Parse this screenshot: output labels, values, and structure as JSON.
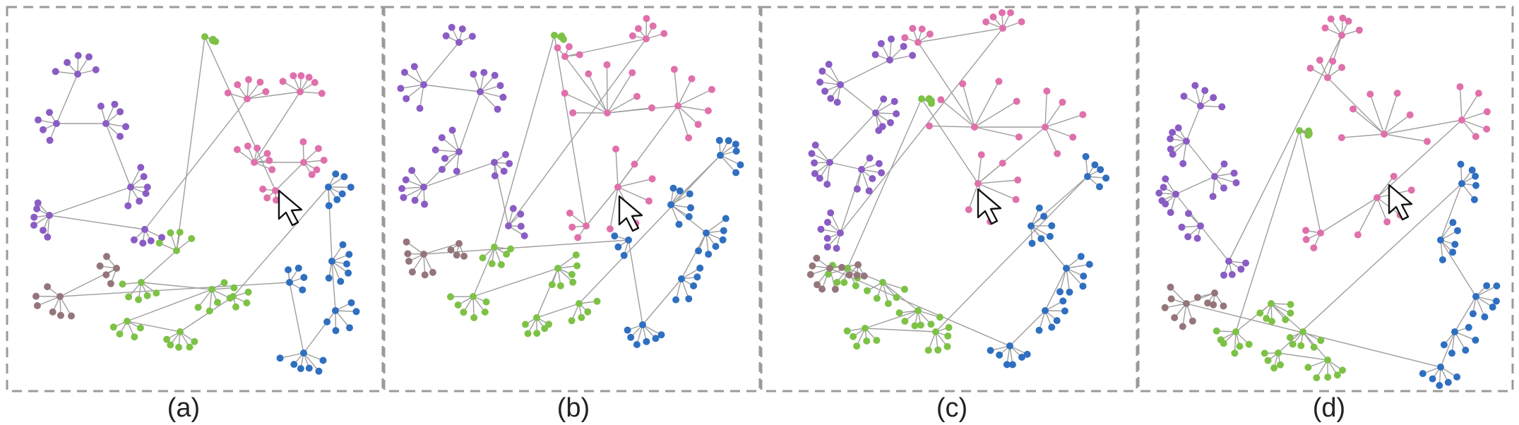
{
  "panels": [
    {
      "id": "a",
      "caption": "(a)"
    },
    {
      "id": "b",
      "caption": "(b)"
    },
    {
      "id": "c",
      "caption": "(c)"
    },
    {
      "id": "d",
      "caption": "(d)"
    }
  ],
  "legend_colors": {
    "purple": "#8a5cc4",
    "pink": "#e070ac",
    "green": "#7dc246",
    "blue": "#2f6fc0",
    "brown": "#94767a",
    "edge": "#9e9e9e",
    "frame": "#9a9a9a"
  },
  "cursor_icon": "mouse-pointer-arrow-icon"
}
